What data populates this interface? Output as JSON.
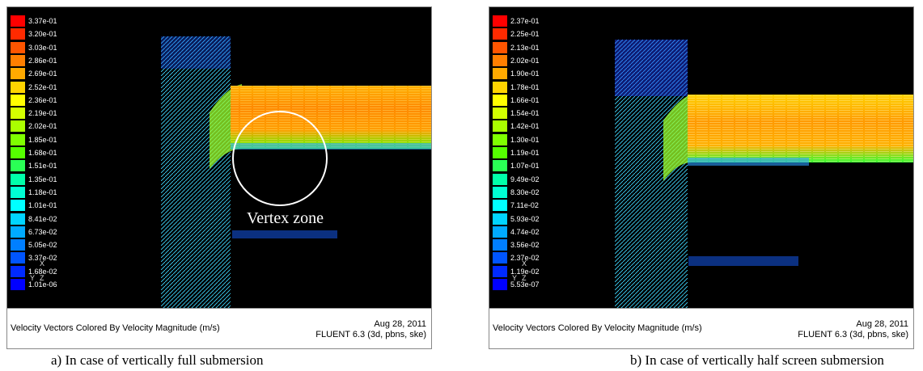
{
  "panels": [
    {
      "id": "a",
      "legend": [
        "3.37e-01",
        "3.20e-01",
        "3.03e-01",
        "2.86e-01",
        "2.69e-01",
        "2.52e-01",
        "2.36e-01",
        "2.19e-01",
        "2.02e-01",
        "1.85e-01",
        "1.68e-01",
        "1.51e-01",
        "1.35e-01",
        "1.18e-01",
        "1.01e-01",
        "8.41e-02",
        "6.73e-02",
        "5.05e-02",
        "3.37e-02",
        "1.68e-02",
        "1.01e-06"
      ],
      "annotation": "Vertex zone",
      "footer_title": "Velocity Vectors Colored By Velocity Magnitude (m/s)",
      "footer_date": "Aug 28, 2011",
      "footer_software": "FLUENT 6.3 (3d, pbns, ske)",
      "caption": "a)  In case of vertically full submersion"
    },
    {
      "id": "b",
      "legend": [
        "2.37e-01",
        "2.25e-01",
        "2.13e-01",
        "2.02e-01",
        "1.90e-01",
        "1.78e-01",
        "1.66e-01",
        "1.54e-01",
        "1.42e-01",
        "1.30e-01",
        "1.19e-01",
        "1.07e-01",
        "9.49e-02",
        "8.30e-02",
        "7.11e-02",
        "5.93e-02",
        "4.74e-02",
        "3.56e-02",
        "2.37e-02",
        "1.19e-02",
        "5.53e-07"
      ],
      "annotation": "",
      "footer_title": "Velocity Vectors Colored By Velocity Magnitude (m/s)",
      "footer_date": "Aug 28, 2011",
      "footer_software": "FLUENT 6.3 (3d, pbns, ske)",
      "caption": "b)  In case of vertically half screen submersion"
    }
  ],
  "axes": {
    "x": "X",
    "y": "Y",
    "z": "Z"
  },
  "colors": {
    "scale": [
      "#ff0000",
      "#ff2a00",
      "#ff5500",
      "#ff7f00",
      "#ffaa00",
      "#ffd400",
      "#ffff00",
      "#d4ff00",
      "#aaff00",
      "#7fff00",
      "#55ff00",
      "#2aff55",
      "#00ffaa",
      "#00ffd4",
      "#00ffff",
      "#00d4ff",
      "#00aaff",
      "#007fff",
      "#0055ff",
      "#002aff",
      "#0000ff"
    ],
    "background": "#000000",
    "channel_main": "#ff9500"
  }
}
